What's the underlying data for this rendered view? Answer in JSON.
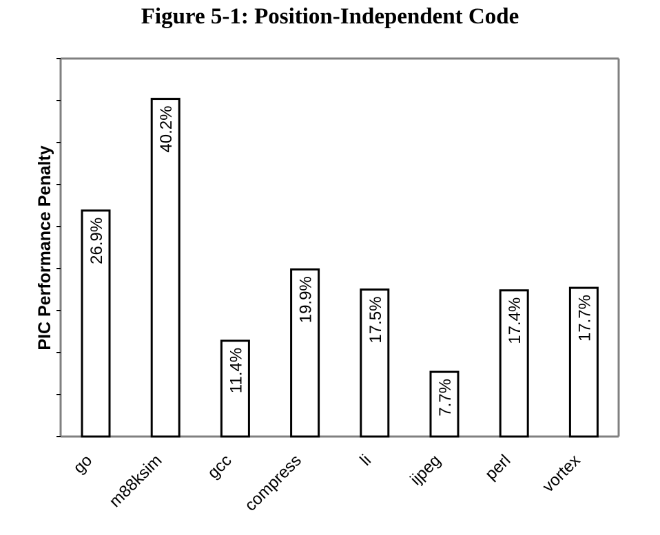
{
  "title": "Figure 5-1: Position-Independent Code",
  "chart_data": {
    "type": "bar",
    "title": "Figure 5-1: Position-Independent Code",
    "xlabel": "",
    "ylabel": "PIC Performance Penalty",
    "categories": [
      "go",
      "m88ksim",
      "gcc",
      "compress",
      "li",
      "ijpeg",
      "perl",
      "vortex"
    ],
    "values": [
      26.9,
      40.2,
      11.4,
      19.9,
      17.5,
      7.7,
      17.4,
      17.7
    ],
    "value_labels": [
      "26.9%",
      "40.2%",
      "11.4%",
      "19.9%",
      "17.5%",
      "7.7%",
      "17.4%",
      "17.7%"
    ],
    "ylim": [
      0,
      45
    ],
    "y_ticks": [
      0,
      5,
      10,
      15,
      20,
      25,
      30,
      35,
      40,
      45
    ],
    "y_tick_labels_shown": false,
    "grid": false,
    "legend": "none",
    "bar_fill": "#ffffff",
    "bar_stroke": "#000000",
    "frame_stroke": "#808080"
  }
}
